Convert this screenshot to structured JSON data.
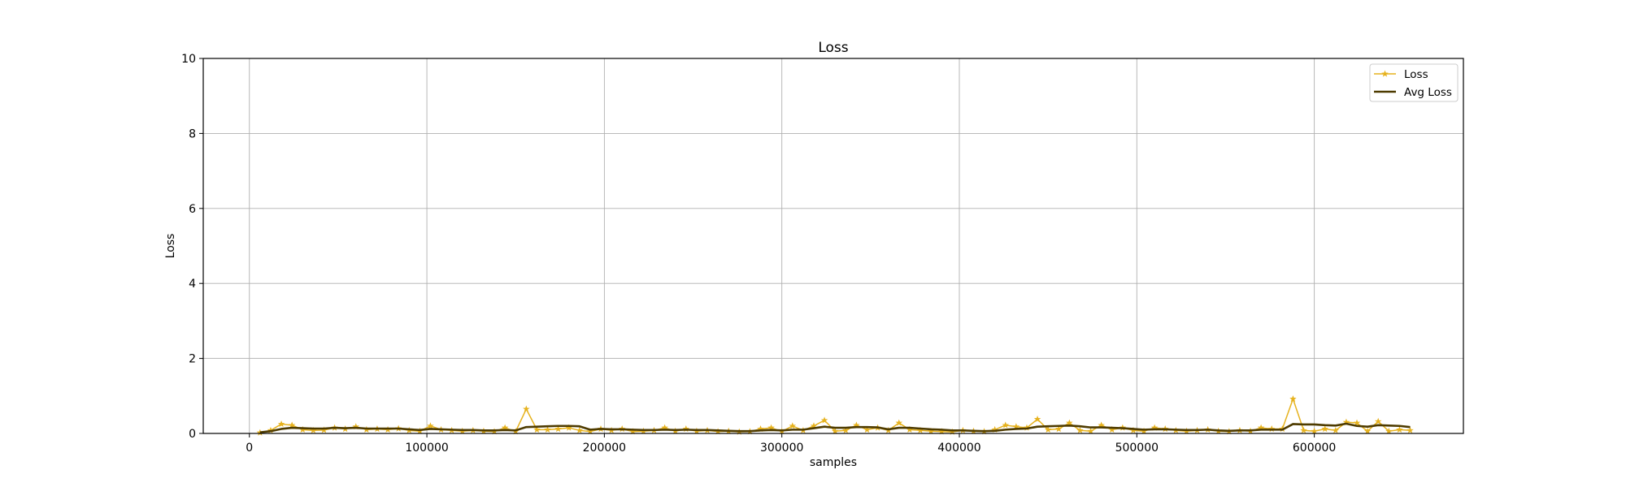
{
  "chart_data": {
    "type": "line",
    "title": "Loss",
    "xlabel": "samples",
    "ylabel": "Loss",
    "xlim": [
      -26000,
      684000
    ],
    "ylim": [
      0,
      10
    ],
    "x_ticks": [
      0,
      100000,
      200000,
      300000,
      400000,
      500000,
      600000
    ],
    "x_tick_labels": [
      "0",
      "100000",
      "200000",
      "300000",
      "400000",
      "500000",
      "600000"
    ],
    "y_ticks": [
      0,
      2,
      4,
      6,
      8,
      10
    ],
    "y_tick_labels": [
      "0",
      "2",
      "4",
      "6",
      "8",
      "10"
    ],
    "grid": true,
    "legend_position": "top-right",
    "x": [
      6000,
      12000,
      18000,
      24000,
      30000,
      36000,
      42000,
      48000,
      54000,
      60000,
      66000,
      72000,
      78000,
      84000,
      90000,
      96000,
      102000,
      108000,
      114000,
      120000,
      126000,
      132000,
      138000,
      144000,
      150000,
      156000,
      162000,
      168000,
      174000,
      180000,
      186000,
      192000,
      198000,
      204000,
      210000,
      216000,
      222000,
      228000,
      234000,
      240000,
      246000,
      252000,
      258000,
      264000,
      270000,
      276000,
      282000,
      288000,
      294000,
      300000,
      306000,
      312000,
      318000,
      324000,
      330000,
      336000,
      342000,
      348000,
      354000,
      360000,
      366000,
      372000,
      378000,
      384000,
      390000,
      396000,
      402000,
      408000,
      414000,
      420000,
      426000,
      432000,
      438000,
      444000,
      450000,
      456000,
      462000,
      468000,
      474000,
      480000,
      486000,
      492000,
      498000,
      504000,
      510000,
      516000,
      522000,
      528000,
      534000,
      540000,
      546000,
      552000,
      558000,
      564000,
      570000,
      576000,
      582000,
      588000,
      594000,
      600000,
      606000,
      612000,
      618000,
      624000,
      630000,
      636000,
      642000,
      648000,
      654000
    ],
    "series": [
      {
        "name": "Loss",
        "color": "#e6b21e",
        "marker": "star",
        "values": [
          0.02,
          0.08,
          0.25,
          0.22,
          0.1,
          0.08,
          0.09,
          0.15,
          0.12,
          0.18,
          0.1,
          0.12,
          0.1,
          0.13,
          0.08,
          0.06,
          0.2,
          0.1,
          0.08,
          0.06,
          0.08,
          0.06,
          0.05,
          0.15,
          0.05,
          0.65,
          0.1,
          0.1,
          0.12,
          0.15,
          0.08,
          0.05,
          0.12,
          0.08,
          0.12,
          0.05,
          0.06,
          0.08,
          0.15,
          0.06,
          0.12,
          0.06,
          0.08,
          0.05,
          0.06,
          0.04,
          0.05,
          0.12,
          0.15,
          0.05,
          0.2,
          0.08,
          0.2,
          0.35,
          0.06,
          0.08,
          0.22,
          0.1,
          0.15,
          0.08,
          0.28,
          0.1,
          0.08,
          0.06,
          0.05,
          0.04,
          0.08,
          0.06,
          0.05,
          0.1,
          0.22,
          0.18,
          0.15,
          0.38,
          0.1,
          0.12,
          0.28,
          0.08,
          0.06,
          0.22,
          0.1,
          0.15,
          0.08,
          0.06,
          0.15,
          0.12,
          0.08,
          0.06,
          0.08,
          0.1,
          0.06,
          0.05,
          0.08,
          0.06,
          0.15,
          0.12,
          0.12,
          0.92,
          0.08,
          0.06,
          0.12,
          0.08,
          0.3,
          0.28,
          0.06,
          0.32,
          0.06,
          0.1,
          0.08
        ]
      },
      {
        "name": "Avg Loss",
        "color": "#4e3b00",
        "marker": "none",
        "values": [
          0.03,
          0.06,
          0.12,
          0.15,
          0.14,
          0.13,
          0.13,
          0.15,
          0.14,
          0.15,
          0.13,
          0.13,
          0.13,
          0.13,
          0.11,
          0.09,
          0.12,
          0.11,
          0.1,
          0.09,
          0.09,
          0.08,
          0.08,
          0.09,
          0.08,
          0.17,
          0.18,
          0.19,
          0.2,
          0.2,
          0.19,
          0.1,
          0.12,
          0.11,
          0.11,
          0.1,
          0.09,
          0.09,
          0.1,
          0.09,
          0.1,
          0.09,
          0.09,
          0.08,
          0.07,
          0.06,
          0.06,
          0.08,
          0.09,
          0.08,
          0.1,
          0.1,
          0.14,
          0.18,
          0.15,
          0.15,
          0.17,
          0.17,
          0.16,
          0.11,
          0.15,
          0.15,
          0.13,
          0.11,
          0.1,
          0.08,
          0.08,
          0.07,
          0.06,
          0.07,
          0.1,
          0.12,
          0.13,
          0.18,
          0.19,
          0.2,
          0.21,
          0.19,
          0.16,
          0.16,
          0.15,
          0.14,
          0.12,
          0.1,
          0.11,
          0.11,
          0.1,
          0.09,
          0.09,
          0.1,
          0.08,
          0.07,
          0.08,
          0.08,
          0.1,
          0.1,
          0.1,
          0.25,
          0.24,
          0.24,
          0.22,
          0.21,
          0.26,
          0.2,
          0.18,
          0.22,
          0.21,
          0.2,
          0.17
        ]
      }
    ]
  }
}
